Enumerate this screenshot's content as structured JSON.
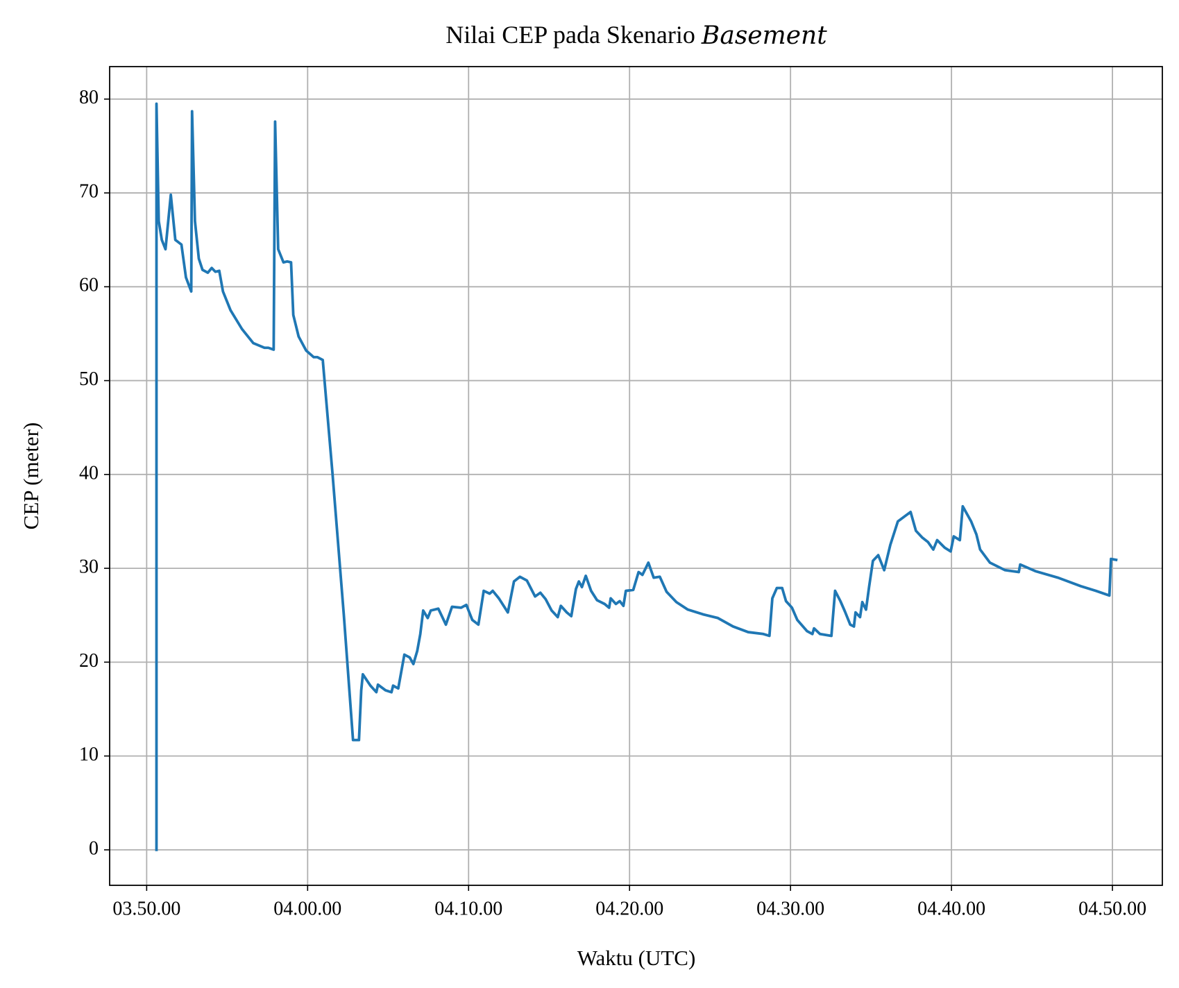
{
  "chart_data": {
    "type": "line",
    "title": "Nilai CEP pada Skenario",
    "title_italic": "Basement",
    "xlabel": "Waktu (UTC)",
    "ylabel": "CEP (meter)",
    "grid": true,
    "xlim": [
      227.7,
      293.1
    ],
    "ylim": [
      -3.78,
      83.46
    ],
    "xticks": [
      {
        "value": 230,
        "label": "03.50.00"
      },
      {
        "value": 240,
        "label": "04.00.00"
      },
      {
        "value": 250,
        "label": "04.10.00"
      },
      {
        "value": 260,
        "label": "04.20.00"
      },
      {
        "value": 270,
        "label": "04.30.00"
      },
      {
        "value": 280,
        "label": "04.40.00"
      },
      {
        "value": 290,
        "label": "04.50.00"
      }
    ],
    "yticks": [
      0,
      10,
      20,
      30,
      40,
      50,
      60,
      70,
      80
    ],
    "x": [
      230.61,
      230.61,
      230.75,
      230.94,
      231.17,
      231.5,
      231.78,
      232.16,
      232.44,
      232.77,
      232.82,
      233.0,
      233.24,
      233.47,
      233.8,
      234.04,
      234.27,
      234.51,
      234.74,
      235.21,
      235.92,
      236.62,
      237.32,
      237.56,
      237.89,
      237.98,
      238.17,
      238.5,
      238.73,
      238.97,
      239.11,
      239.44,
      239.91,
      240.38,
      240.61,
      240.94,
      241.55,
      242.25,
      242.82,
      243.19,
      243.33,
      243.43,
      243.9,
      244.27,
      244.37,
      244.84,
      245.21,
      245.31,
      245.63,
      246.01,
      246.34,
      246.57,
      246.81,
      247.0,
      247.18,
      247.46,
      247.65,
      248.12,
      248.59,
      248.97,
      249.53,
      249.86,
      250.23,
      250.61,
      250.94,
      251.31,
      251.5,
      251.88,
      252.44,
      252.82,
      253.19,
      253.62,
      254.13,
      254.46,
      254.79,
      255.16,
      255.54,
      255.73,
      256.1,
      256.38,
      256.67,
      256.85,
      257.04,
      257.28,
      257.61,
      257.98,
      258.45,
      258.73,
      258.83,
      259.15,
      259.39,
      259.62,
      259.77,
      260.23,
      260.56,
      260.8,
      261.17,
      261.5,
      261.88,
      262.3,
      262.91,
      263.62,
      264.55,
      265.49,
      266.43,
      267.37,
      268.31,
      268.69,
      268.87,
      269.15,
      269.48,
      269.72,
      270.09,
      270.42,
      271.03,
      271.36,
      271.46,
      271.83,
      272.54,
      272.63,
      272.77,
      273.1,
      273.38,
      273.71,
      273.94,
      274.04,
      274.32,
      274.46,
      274.69,
      274.88,
      275.12,
      275.45,
      275.82,
      276.2,
      276.67,
      277.14,
      277.46,
      277.79,
      278.17,
      278.54,
      278.87,
      279.11,
      279.58,
      279.95,
      280.14,
      280.52,
      280.7,
      281.22,
      281.55,
      281.78,
      282.39,
      283.33,
      284.18,
      284.27,
      285.21,
      286.62,
      288.03,
      288.97,
      289.81,
      289.91,
      290.23
    ],
    "series": [
      {
        "name": "CEP",
        "color": "#1f77b4",
        "values": [
          0,
          79.5,
          67,
          65,
          64,
          69.8,
          65,
          64.5,
          61,
          59.5,
          78.7,
          67,
          63,
          61.8,
          61.5,
          62,
          61.6,
          61.7,
          59.5,
          57.5,
          55.5,
          54,
          53.5,
          53.5,
          53.3,
          77.6,
          64,
          62.6,
          62.7,
          62.6,
          57,
          54.7,
          53.2,
          52.5,
          52.5,
          52.2,
          40,
          25,
          11.7,
          11.7,
          17,
          18.7,
          17.5,
          16.8,
          17.6,
          17,
          16.8,
          17.5,
          17.2,
          20.8,
          20.5,
          19.8,
          21.2,
          23,
          25.5,
          24.7,
          25.5,
          25.7,
          24,
          25.9,
          25.8,
          26.1,
          24.5,
          24,
          27.6,
          27.3,
          27.6,
          26.8,
          25.3,
          28.6,
          29.1,
          28.7,
          27,
          27.4,
          26.7,
          25.5,
          24.8,
          26,
          25.3,
          24.9,
          27.8,
          28.6,
          28,
          29.2,
          27.6,
          26.6,
          26.2,
          25.8,
          26.8,
          26.2,
          26.5,
          26,
          27.6,
          27.7,
          29.6,
          29.3,
          30.6,
          29,
          29.1,
          27.5,
          26.4,
          25.6,
          25.1,
          24.7,
          23.8,
          23.2,
          23,
          22.8,
          26.8,
          27.9,
          27.9,
          26.5,
          25.8,
          24.5,
          23.3,
          23,
          23.6,
          23,
          22.8,
          24.7,
          27.6,
          26.5,
          25.4,
          24,
          23.8,
          25.3,
          24.8,
          26.4,
          25.6,
          28,
          30.8,
          31.4,
          29.8,
          32.5,
          35,
          35.6,
          36,
          34,
          33.3,
          32.8,
          32,
          33,
          32.2,
          31.8,
          33.4,
          33,
          36.6,
          35,
          33.6,
          32,
          30.6,
          29.8,
          29.6,
          30.4,
          29.7,
          29,
          28.1,
          27.6,
          27.1,
          31,
          30.9
        ]
      }
    ]
  }
}
